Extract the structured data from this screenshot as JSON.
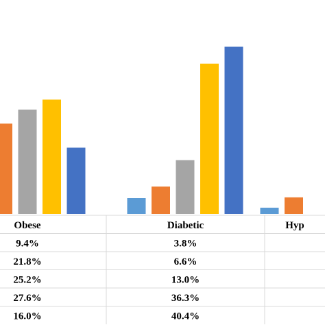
{
  "chart_data": {
    "type": "bar",
    "categories": [
      "Obese",
      "Diabetic",
      "Hyp"
    ],
    "series": [
      {
        "color": "#5B9BD5",
        "values": [
          9.4,
          3.8,
          1.5
        ]
      },
      {
        "color": "#ED7D31",
        "values": [
          21.8,
          6.6,
          4.0
        ]
      },
      {
        "color": "#A5A5A5",
        "values": [
          25.2,
          13.0,
          null
        ]
      },
      {
        "color": "#FFC000",
        "values": [
          27.6,
          36.3,
          null
        ]
      },
      {
        "color": "#4472C4",
        "values": [
          16.0,
          40.4,
          null
        ]
      }
    ],
    "table": {
      "rows": [
        [
          "9.4%",
          "3.8%",
          ""
        ],
        [
          "21.8%",
          "6.6%",
          ""
        ],
        [
          "25.2%",
          "13.0%",
          ""
        ],
        [
          "27.6%",
          "36.3%",
          ""
        ],
        [
          "16.0%",
          "40.4%",
          ""
        ]
      ]
    },
    "ylim": [
      0,
      40.4
    ],
    "grid": false,
    "legend": "none"
  }
}
